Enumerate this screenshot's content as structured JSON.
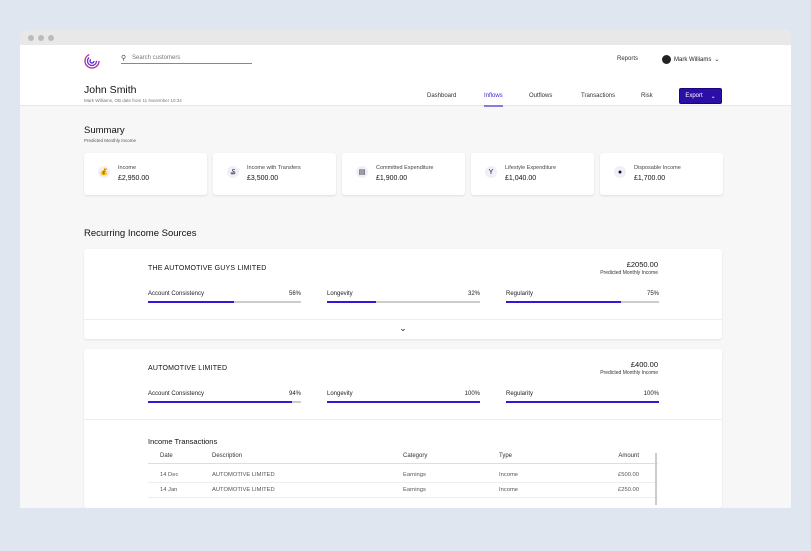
{
  "header": {
    "search_placeholder": "Search customers",
    "reports": "Reports",
    "user": "Mark Williams"
  },
  "customer": {
    "name": "John Smith",
    "subtitle": "Mark Williams, OB date from 11 November 10:34"
  },
  "tabs": [
    {
      "label": "Dashboard"
    },
    {
      "label": "Inflows",
      "active": true
    },
    {
      "label": "Outflows"
    },
    {
      "label": "Transactions"
    },
    {
      "label": "Risk"
    }
  ],
  "export_label": "Export",
  "accent": "#2a0ea6",
  "summary": {
    "title": "Summary",
    "subtitle": "Predicted Monthly Income",
    "cards": [
      {
        "label": "Income",
        "value": "£2,950.00",
        "icon": "money-bag-icon"
      },
      {
        "label": "Income with Transfers",
        "value": "£3,500.00",
        "icon": "money-bag-transfer-icon"
      },
      {
        "label": "Committed Expenditure",
        "value": "£1,900.00",
        "icon": "document-icon"
      },
      {
        "label": "Lifestyle Expenditure",
        "value": "£1,040.00",
        "icon": "cocktail-icon"
      },
      {
        "label": "Disposable Income",
        "value": "£1,700.00",
        "icon": "piggy-bank-icon"
      }
    ]
  },
  "recurring": {
    "title": "Recurring Income Sources",
    "sources": [
      {
        "name": "THE AUTOMOTIVE GUYS LIMITED",
        "amount": "£2050.00",
        "amount_label": "Predicted Monthly Income",
        "metrics": [
          {
            "label": "Account Consistency",
            "value": "56%",
            "pct": 56
          },
          {
            "label": "Longevity",
            "value": "32%",
            "pct": 32
          },
          {
            "label": "Regularity",
            "value": "75%",
            "pct": 75
          }
        ]
      },
      {
        "name": "AUTOMOTIVE LIMITED",
        "amount": "£400.00",
        "amount_label": "Predicted Monthly Income",
        "metrics": [
          {
            "label": "Account Consistency",
            "value": "94%",
            "pct": 94
          },
          {
            "label": "Longevity",
            "value": "100%",
            "pct": 100
          },
          {
            "label": "Regularity",
            "value": "100%",
            "pct": 100
          }
        ]
      }
    ]
  },
  "transactions": {
    "title": "Income Transactions",
    "columns": [
      "Date",
      "Description",
      "Category",
      "Type",
      "Amount"
    ],
    "rows": [
      [
        "14 Dec",
        "AUTOMOTIVE LIMITED",
        "Earnings",
        "Income",
        "£500.00"
      ],
      [
        "14 Jan",
        "AUTOMOTIVE LIMITED",
        "Earnings",
        "Income",
        "£250.00"
      ]
    ]
  }
}
